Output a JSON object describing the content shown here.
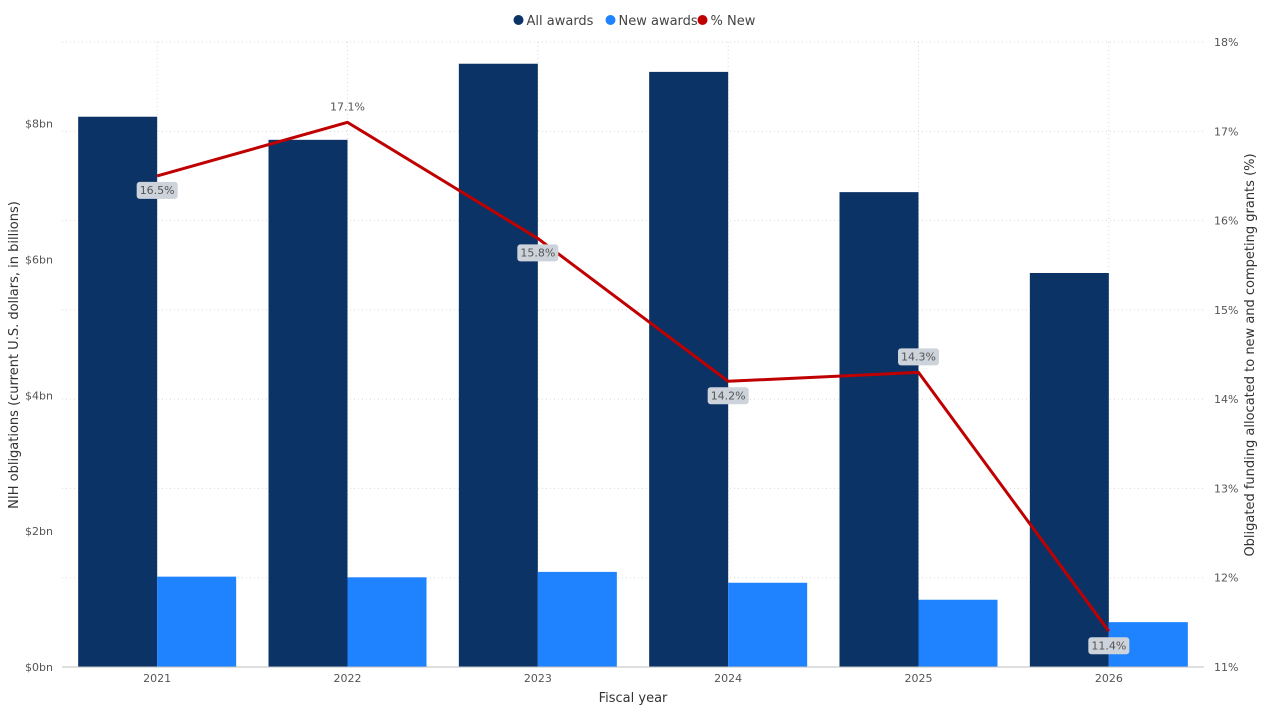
{
  "chart_data": {
    "type": "bar",
    "categories": [
      "2021",
      "2022",
      "2023",
      "2024",
      "2025",
      "2026"
    ],
    "series": [
      {
        "name": "All awards",
        "type": "bar",
        "axis": "left",
        "color": "#0B3366",
        "values": [
          8.1,
          7.76,
          8.88,
          8.76,
          6.99,
          5.8
        ]
      },
      {
        "name": "New awards",
        "type": "bar",
        "axis": "left",
        "color": "#1F82FF",
        "values": [
          1.33,
          1.32,
          1.4,
          1.24,
          0.99,
          0.66
        ]
      },
      {
        "name": "% New",
        "type": "line",
        "axis": "right",
        "color": "#C00000",
        "values": [
          16.5,
          17.1,
          15.8,
          14.2,
          14.3,
          11.4
        ],
        "labels": [
          "16.5%",
          "17.1%",
          "15.8%",
          "14.2%",
          "14.3%",
          "11.4%"
        ]
      }
    ],
    "xlabel": "Fiscal year",
    "ylabel": "NIH obligations (current U.S. dollars, in billions)",
    "y2label": "Obligated funding allocated to new and competing grants (%)",
    "ylim": [
      0,
      9.2
    ],
    "y2lim": [
      11,
      18
    ],
    "yticks": [
      0,
      2,
      4,
      6,
      8
    ],
    "ytick_labels": [
      "$0bn",
      "$2bn",
      "$4bn",
      "$6bn",
      "$8bn"
    ],
    "y2ticks": [
      11,
      12,
      13,
      14,
      15,
      16,
      17,
      18
    ],
    "y2tick_labels": [
      "11%",
      "12%",
      "13%",
      "14%",
      "15%",
      "16%",
      "17%",
      "18%"
    ],
    "legend": "top-center",
    "grid": true
  }
}
